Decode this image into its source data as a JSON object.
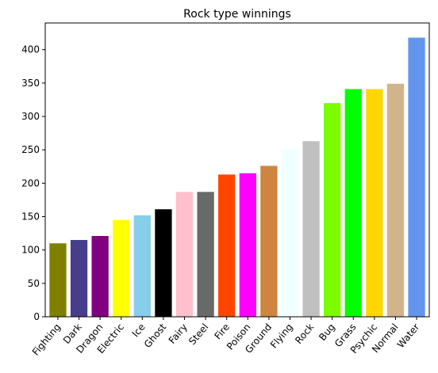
{
  "chart_data": {
    "type": "bar",
    "title": "Rock type winnings",
    "xlabel": "",
    "ylabel": "",
    "ylim": [
      0,
      440
    ],
    "yticks": [
      0,
      50,
      100,
      150,
      200,
      250,
      300,
      350,
      400
    ],
    "grid": false,
    "categories": [
      "Fighting",
      "Dark",
      "Dragon",
      "Electric",
      "Ice",
      "Ghost",
      "Fairy",
      "Steel",
      "Fire",
      "Poison",
      "Ground",
      "Flying",
      "Rock",
      "Bug",
      "Grass",
      "Psychic",
      "Normal",
      "Water"
    ],
    "values": [
      110,
      115,
      121,
      145,
      152,
      161,
      187,
      187,
      213,
      215,
      226,
      251,
      263,
      320,
      341,
      341,
      349,
      418
    ],
    "colors": [
      "#808000",
      "#483D8B",
      "#800080",
      "#FFFF00",
      "#87CEEB",
      "#000000",
      "#FFC0CB",
      "#696969",
      "#FF4500",
      "#FF00FF",
      "#CD853F",
      "#F0FFFF",
      "#C0C0C0",
      "#7CFC00",
      "#00FF00",
      "#FFD700",
      "#D2B48C",
      "#6495ED"
    ]
  }
}
